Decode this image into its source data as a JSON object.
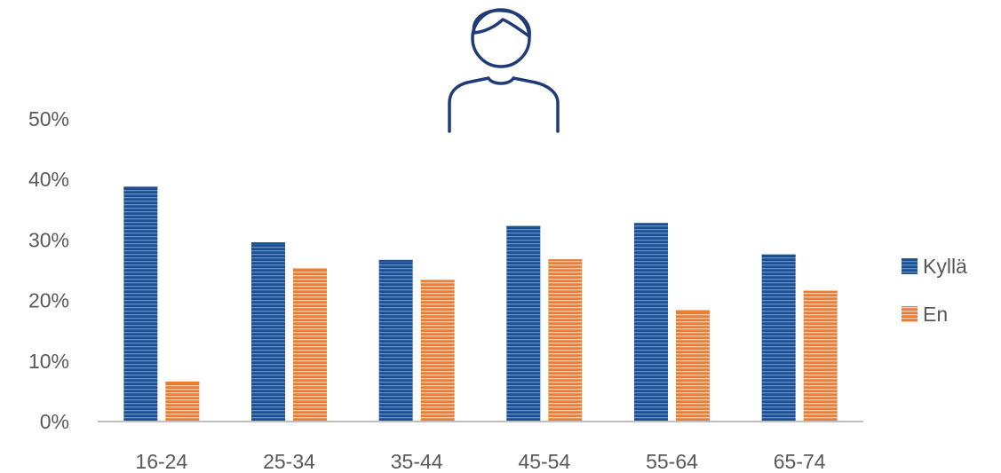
{
  "icons": {
    "person": "person-outline-icon"
  },
  "colors": {
    "kylla": "#1f4e8c",
    "kylla_stripe": "#5b8fd0",
    "en": "#ed7d31",
    "en_stripe": "#f8c7a5",
    "axis": "#bfbfbf",
    "icon": "#1f3b78"
  },
  "chart_data": {
    "type": "bar",
    "title": "",
    "xlabel": "",
    "ylabel": "",
    "categories": [
      "16-24",
      "25-34",
      "35-44",
      "45-54",
      "55-64",
      "65-74"
    ],
    "series": [
      {
        "name": "Kyllä",
        "values": [
          38.8,
          29.6,
          26.7,
          32.3,
          32.8,
          27.6
        ]
      },
      {
        "name": "En",
        "values": [
          6.6,
          25.3,
          23.4,
          26.8,
          18.4,
          21.6
        ]
      }
    ],
    "ylim": [
      0,
      50
    ],
    "yticks": [
      "0%",
      "10%",
      "20%",
      "30%",
      "40%",
      "50%"
    ],
    "grid": false,
    "legend_position": "right"
  }
}
